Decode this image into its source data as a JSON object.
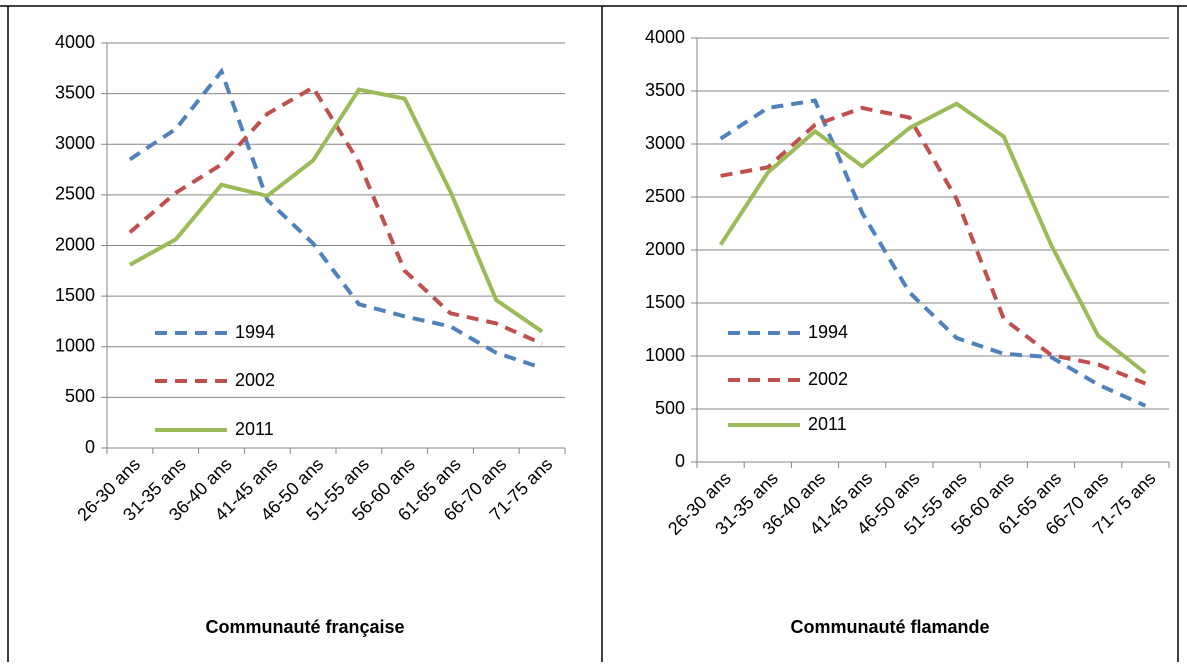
{
  "chart_data": [
    {
      "type": "line",
      "title": "Communauté française",
      "categories": [
        "26-30 ans",
        "31-35 ans",
        "36-40 ans",
        "41-45 ans",
        "46-50 ans",
        "51-55 ans",
        "56-60 ans",
        "61-65 ans",
        "66-70 ans",
        "71-75 ans"
      ],
      "series": [
        {
          "name": "1994",
          "color": "#4f81bd",
          "style": "dashed",
          "values": [
            2850,
            3150,
            3720,
            2450,
            2020,
            1420,
            1300,
            1200,
            940,
            790
          ]
        },
        {
          "name": "2002",
          "color": "#c0504d",
          "style": "dashed",
          "values": [
            2130,
            2520,
            2800,
            3300,
            3560,
            2820,
            1750,
            1330,
            1230,
            1030
          ]
        },
        {
          "name": "2011",
          "color": "#9bbb59",
          "style": "solid",
          "values": [
            1810,
            2060,
            2600,
            2490,
            2840,
            3540,
            3450,
            2530,
            1460,
            1150
          ]
        }
      ],
      "ylim": [
        0,
        4000
      ],
      "yticks": [
        0,
        500,
        1000,
        1500,
        2000,
        2500,
        3000,
        3500,
        4000
      ],
      "grid": true
    },
    {
      "type": "line",
      "title": "Communauté flamande",
      "categories": [
        "26-30 ans",
        "31-35 ans",
        "36-40 ans",
        "41-45 ans",
        "46-50 ans",
        "51-55 ans",
        "56-60 ans",
        "61-65 ans",
        "66-70 ans",
        "71-75 ans"
      ],
      "series": [
        {
          "name": "1994",
          "color": "#4f81bd",
          "style": "dashed",
          "values": [
            3050,
            3340,
            3410,
            2350,
            1600,
            1170,
            1020,
            990,
            730,
            530
          ]
        },
        {
          "name": "2002",
          "color": "#c0504d",
          "style": "dashed",
          "values": [
            2700,
            2780,
            3180,
            3340,
            3250,
            2480,
            1350,
            1010,
            920,
            740
          ]
        },
        {
          "name": "2011",
          "color": "#9bbb59",
          "style": "solid",
          "values": [
            2050,
            2730,
            3120,
            2790,
            3150,
            3380,
            3070,
            2050,
            1190,
            840
          ]
        }
      ],
      "ylim": [
        0,
        4000
      ],
      "yticks": [
        0,
        500,
        1000,
        1500,
        2000,
        2500,
        3000,
        3500,
        4000
      ],
      "grid": true
    }
  ]
}
